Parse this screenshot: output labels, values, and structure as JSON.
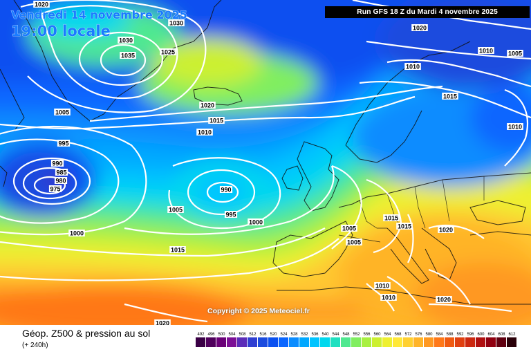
{
  "header": {
    "date_line": "Vendredi 14 novembre 2025",
    "time_line": "19:00 locale",
    "run_info": "Run GFS 18 Z du Mardi 4 novembre 2025"
  },
  "copyright": "Copyright © 2025 Meteociel.fr",
  "footer": {
    "title": "Géop. Z500 & pression au sol",
    "subtitle": "(+ 240h)"
  },
  "legend": {
    "values": [
      "492",
      "496",
      "500",
      "504",
      "508",
      "512",
      "516",
      "520",
      "524",
      "528",
      "532",
      "536",
      "540",
      "544",
      "548",
      "552",
      "556",
      "560",
      "564",
      "568",
      "572",
      "576",
      "580",
      "584",
      "588",
      "592",
      "596",
      "600",
      "604",
      "608",
      "612"
    ],
    "colors": [
      "#3a0045",
      "#50005c",
      "#6a0077",
      "#7c0f95",
      "#5b2cb8",
      "#2f3ed1",
      "#1b4bde",
      "#0a50f0",
      "#0a66ff",
      "#0a8cff",
      "#00a8ff",
      "#00c4ff",
      "#00d8ee",
      "#20e0c0",
      "#50e890",
      "#80ee60",
      "#a8f040",
      "#ccf030",
      "#eef030",
      "#ffe838",
      "#ffd030",
      "#ffb428",
      "#ff9820",
      "#ff7818",
      "#f05a10",
      "#e04010",
      "#cc2810",
      "#b01010",
      "#900010",
      "#600010",
      "#2a0008"
    ]
  },
  "isobars": [
    {
      "text": "1020"
    },
    {
      "text": "1030"
    },
    {
      "text": "1030"
    },
    {
      "text": "1035"
    },
    {
      "text": "1025"
    },
    {
      "text": "1020"
    },
    {
      "text": "1010"
    },
    {
      "text": "1010"
    },
    {
      "text": "1005"
    },
    {
      "text": "1015"
    },
    {
      "text": "1005"
    },
    {
      "text": "1020"
    },
    {
      "text": "1015"
    },
    {
      "text": "1010"
    },
    {
      "text": "1010"
    },
    {
      "text": "995"
    },
    {
      "text": "990"
    },
    {
      "text": "985"
    },
    {
      "text": "980"
    },
    {
      "text": "975"
    },
    {
      "text": "990"
    },
    {
      "text": "995"
    },
    {
      "text": "1000"
    },
    {
      "text": "1005"
    },
    {
      "text": "1000"
    },
    {
      "text": "1015"
    },
    {
      "text": "1005"
    },
    {
      "text": "1005"
    },
    {
      "text": "1015"
    },
    {
      "text": "1015"
    },
    {
      "text": "1020"
    },
    {
      "text": "1010"
    },
    {
      "text": "1010"
    },
    {
      "text": "1020"
    },
    {
      "text": "1020"
    }
  ],
  "colors": {
    "isobar_line": "#ffffff",
    "run_box_bg": "#000000",
    "title_color": "#1a7bff"
  }
}
